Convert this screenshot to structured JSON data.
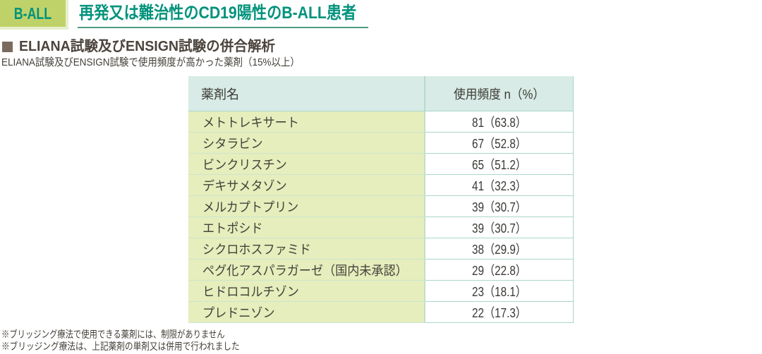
{
  "header": {
    "badge_label": "B-ALL",
    "title": "再発又は難治性のCD19陽性のB-ALL患者"
  },
  "section": {
    "heading": "ELIANA試験及びENSIGN試験の併合解析",
    "subtitle": "ELIANA試験及びENSIGN試験で使用頻度が高かった薬剤（15%以上）"
  },
  "table": {
    "columns": {
      "drug": "薬剤名",
      "frequency": "使用頻度 n（%）"
    },
    "rows": [
      {
        "drug": "メトトレキサート",
        "frequency": "81（63.8）"
      },
      {
        "drug": "シタラビン",
        "frequency": "67（52.8）"
      },
      {
        "drug": "ビンクリスチン",
        "frequency": "65（51.2）"
      },
      {
        "drug": "デキサメタゾン",
        "frequency": "41（32.3）"
      },
      {
        "drug": "メルカプトプリン",
        "frequency": "39（30.7）"
      },
      {
        "drug": "エトポシド",
        "frequency": "39（30.7）"
      },
      {
        "drug": "シクロホスファミド",
        "frequency": "38（29.9）"
      },
      {
        "drug": "ペグ化アスパラガーゼ（国内未承認）",
        "frequency": "29（22.8）"
      },
      {
        "drug": "ヒドロコルチゾン",
        "frequency": "23（18.1）"
      },
      {
        "drug": "プレドニゾン",
        "frequency": "22（17.3）"
      }
    ]
  },
  "footnotes": [
    "※ブリッジング療法で使用できる薬剤には、制限がありません",
    "※ブリッジング療法は、上記薬剤の単剤又は併用で行われました"
  ],
  "colors": {
    "accent_teal": "#00927b",
    "badge_green": "#bfd269",
    "header_cell_teal": "#d5eae4",
    "drug_cell_green": "#e5eebc",
    "heading_brown": "#7b6b5e",
    "text_dark": "#45403a"
  }
}
